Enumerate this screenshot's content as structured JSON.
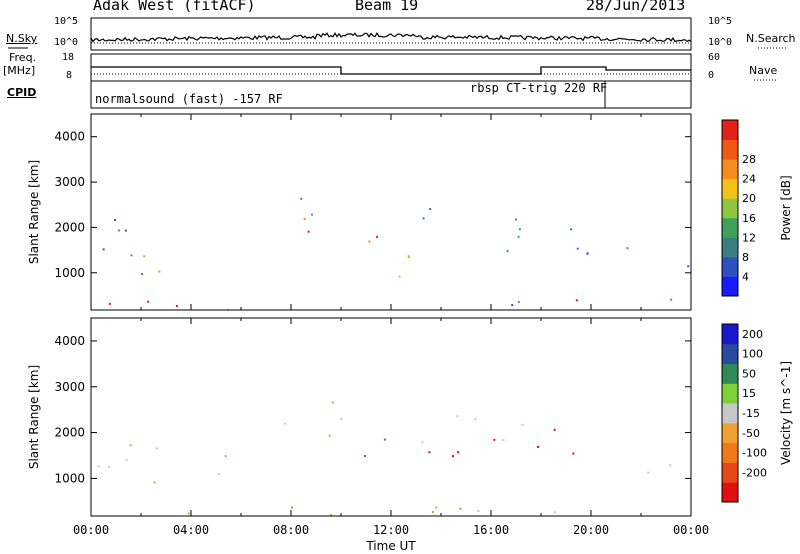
{
  "header": {
    "station": "Adak West (fitACF)",
    "beam": "Beam 19",
    "date": "28/Jun/2013"
  },
  "strip": {
    "nsky_label": "N.Sky",
    "nsearch_label": "N.Search",
    "noise_axis_top": "10^5",
    "noise_axis_bottom": "10^0",
    "freq_label": "Freq.",
    "freq_unit": "[MHz]",
    "freq_axis_top": "18",
    "freq_axis_bottom": "8",
    "nave_label": "Nave",
    "nave_axis_top": "60",
    "nave_axis_bottom": "0",
    "cpid_label": "CPID",
    "cpid_mode1": "normalsound (fast) -157 RF",
    "cpid_mode2": "rbsp CT-trig 220 RF"
  },
  "chart_data": [
    {
      "type": "heatmap",
      "panel": "power",
      "ylabel": "Slant Range [km]",
      "ylim": [
        180,
        4500
      ],
      "yticks": [
        1000,
        2000,
        3000,
        4000
      ],
      "xlim_hours": [
        0,
        24
      ],
      "colorbar": {
        "label": "Power [dB]",
        "ticks": [
          "4",
          "8",
          "12",
          "16",
          "20",
          "24",
          "28"
        ],
        "colors": [
          "#1a1aff",
          "#2f50c0",
          "#3a7f7f",
          "#3fa05a",
          "#8ec63f",
          "#f2c21a",
          "#f78c1e",
          "#ee5a14",
          "#e3201b"
        ]
      }
    },
    {
      "type": "heatmap",
      "panel": "velocity",
      "ylabel": "Slant Range [km]",
      "ylim": [
        180,
        4500
      ],
      "yticks": [
        1000,
        2000,
        3000,
        4000
      ],
      "xlim_hours": [
        0,
        24
      ],
      "xlabel": "Time UT",
      "xticks": [
        "00:00",
        "04:00",
        "08:00",
        "12:00",
        "16:00",
        "20:00",
        "00:00"
      ],
      "colorbar": {
        "label": "Velocity [m s^-1]",
        "ticks": [
          "200",
          "100",
          "50",
          "15",
          "-15",
          "-50",
          "-100",
          "-200"
        ],
        "colors": [
          "#1a1acc",
          "#2a4aa0",
          "#2e8b57",
          "#7fd13b",
          "#c8c8c8",
          "#f0a030",
          "#f07818",
          "#e84818",
          "#e01010"
        ]
      }
    }
  ]
}
